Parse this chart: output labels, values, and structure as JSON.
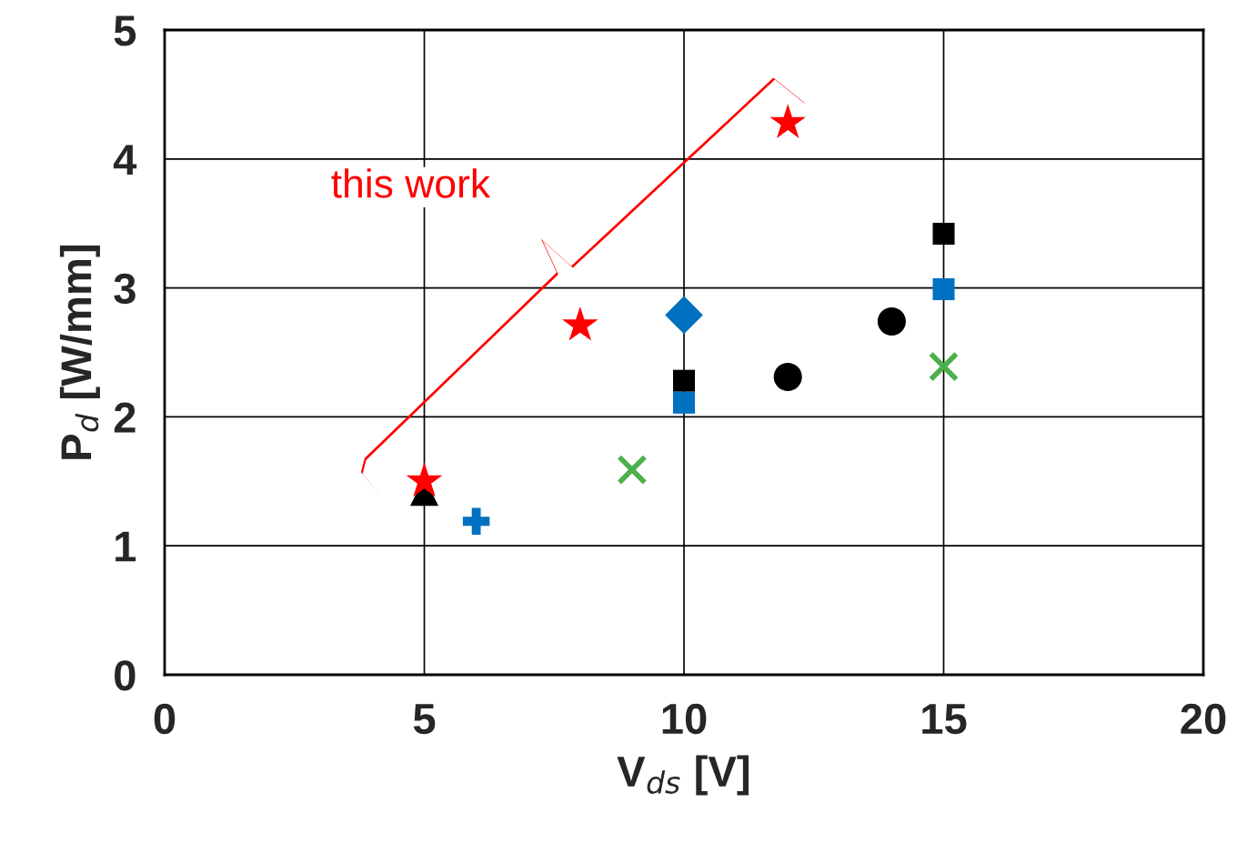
{
  "chart_data": {
    "type": "scatter",
    "xlabel": "V$_{ds}$ [V]",
    "ylabel": "P$_{d}$ [W/mm]",
    "xlim": [
      0,
      20
    ],
    "xticks": [
      0,
      5,
      10,
      15,
      20
    ],
    "ylim": [
      0,
      5
    ],
    "yticks": [
      0,
      1,
      2,
      3,
      4,
      5
    ],
    "grid": true,
    "annotations": [
      "this work"
    ],
    "series": [
      {
        "color": "#000000",
        "marker": "triangle",
        "x": [
          5
        ],
        "values": [
          1.42
        ]
      },
      {
        "color": "#ff0000",
        "marker": "star",
        "x": [
          5,
          8,
          12
        ],
        "values": [
          1.5,
          2.71,
          4.28
        ]
      },
      {
        "color": "#0070c0",
        "x": [
          6
        ],
        "values": [
          1.19
        ]
      },
      {
        "color": "#4cb04c",
        "marker": "cross",
        "x": [
          9,
          15
        ],
        "values": [
          1.59,
          2.39
        ]
      },
      {
        "color": "#0070c0",
        "marker": "diamond",
        "x": [
          10
        ],
        "values": [
          2.79
        ]
      },
      {
        "color": "#000000",
        "marker": "square",
        "x": [
          10,
          15
        ],
        "values": [
          2.28,
          3.42
        ]
      },
      {
        "color": "#0070c0",
        "marker": "square",
        "x": [
          10,
          15
        ],
        "values": [
          2.11,
          2.99
        ]
      },
      {
        "color": "#000000",
        "marker": "circle",
        "x": [
          12,
          14
        ],
        "values": [
          2.31,
          2.74
        ]
      }
    ]
  }
}
